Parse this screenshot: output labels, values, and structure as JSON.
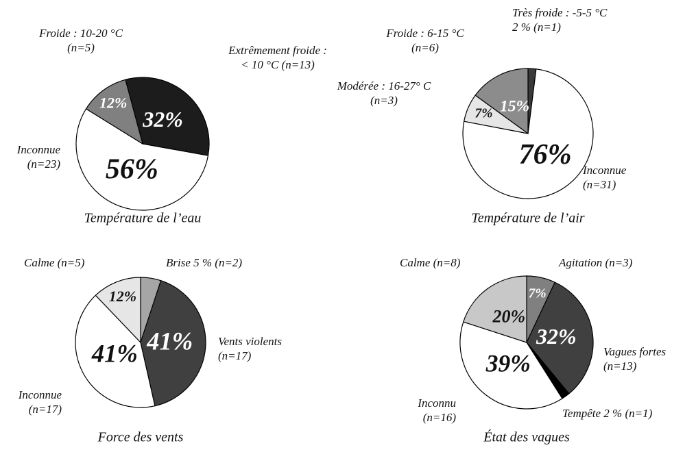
{
  "chart_data": [
    {
      "type": "pie",
      "title": "Température de l’eau",
      "categories": [
        [
          "Extrêmement froide :",
          "< 10 °C (n=13)"
        ],
        [
          "Inconnue",
          "(n=23)"
        ],
        [
          "Froide : 10-20 °C",
          "(n=5)"
        ]
      ],
      "values": [
        32,
        56,
        12
      ],
      "value_labels": [
        "32%",
        "56%",
        "12%"
      ],
      "colors": [
        "#1c1c1c",
        "#ffffff",
        "#808080"
      ]
    },
    {
      "type": "pie",
      "title": "Température de l’air",
      "categories": [
        [
          "Très froide : -5-5 °C",
          "2 % (n=1)"
        ],
        [
          "Inconnue",
          "(n=31)"
        ],
        [
          "Modérée : 16-27° C",
          "(n=3)"
        ],
        [
          "Froide : 6-15 °C",
          "(n=6)"
        ]
      ],
      "values": [
        2,
        76,
        7,
        15
      ],
      "value_labels": [
        null,
        "76%",
        "7%",
        "15%"
      ],
      "colors": [
        "#3a3a3a",
        "#ffffff",
        "#e6e6e6",
        "#8c8c8c"
      ]
    },
    {
      "type": "pie",
      "title": "Force des vents",
      "categories": [
        [
          "Brise 5 % (n=2)"
        ],
        [
          "Vents violents",
          "(n=17)"
        ],
        [
          "Inconnue",
          "(n=17)"
        ],
        [
          "Calme (n=5)"
        ]
      ],
      "values": [
        5,
        41,
        41,
        12
      ],
      "value_labels": [
        null,
        "41%",
        "41%",
        "12%"
      ],
      "colors": [
        "#a6a6a6",
        "#404040",
        "#ffffff",
        "#e6e6e6"
      ]
    },
    {
      "type": "pie",
      "title": "État des vagues",
      "categories": [
        [
          "Agitation (n=3)"
        ],
        [
          "Vagues fortes",
          "(n=13)"
        ],
        [
          "Tempête 2 % (n=1)"
        ],
        [
          "Inconnu",
          "(n=16)"
        ],
        [
          "Calme (n=8)"
        ]
      ],
      "values": [
        7,
        32,
        2,
        39,
        20
      ],
      "value_labels": [
        "7%",
        "32%",
        null,
        "39%",
        "20%"
      ],
      "colors": [
        "#808080",
        "#404040",
        "#000000",
        "#ffffff",
        "#c8c8c8"
      ]
    }
  ]
}
